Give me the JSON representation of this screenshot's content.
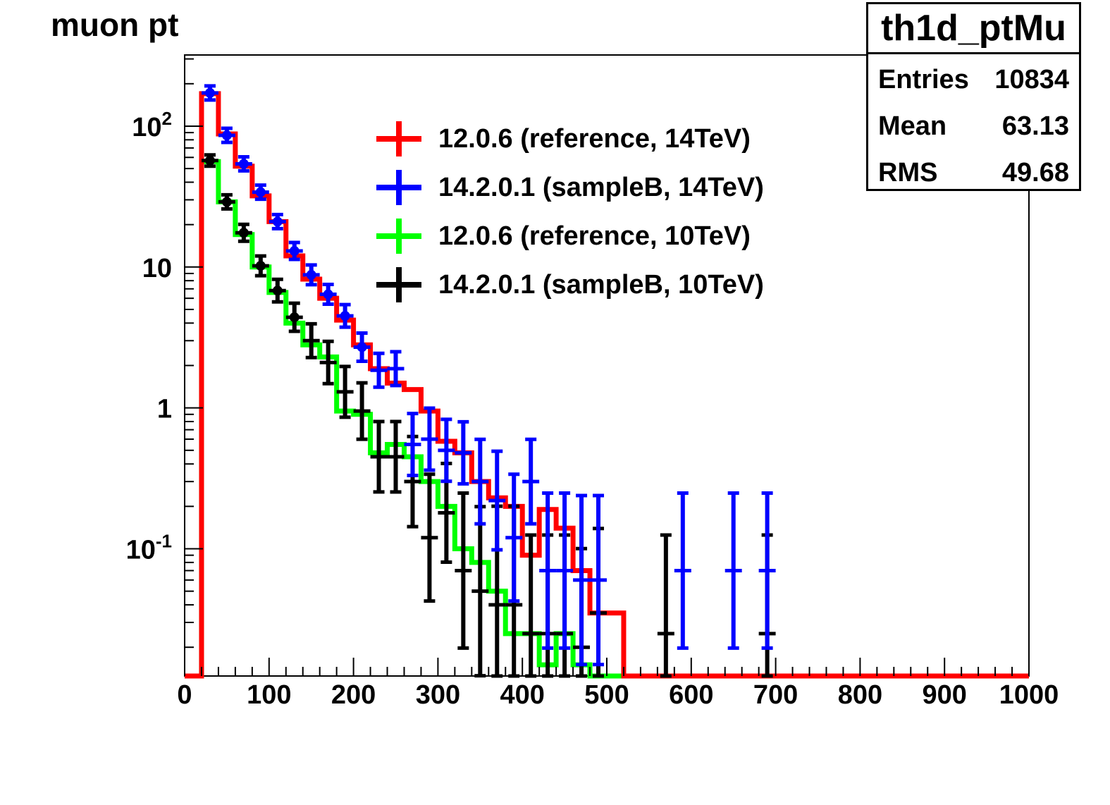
{
  "chart_data": {
    "type": "histogram",
    "title": "muon pt",
    "xlim": [
      0,
      1000
    ],
    "ylim": [
      0.0125,
      320
    ],
    "yscale": "log",
    "bin_width": 20,
    "x_ticks": [
      0,
      100,
      200,
      300,
      400,
      500,
      600,
      700,
      800,
      900,
      1000
    ],
    "x_tick_labels": [
      "0",
      "100",
      "200",
      "300",
      "400",
      "500",
      "600",
      "700",
      "800",
      "900",
      "1000"
    ],
    "y_ticks": [
      0.1,
      1,
      10,
      100
    ],
    "y_tick_labels": [
      {
        "base": "10",
        "exp": "-1"
      },
      {
        "base": "1",
        "exp": ""
      },
      {
        "base": "10",
        "exp": ""
      },
      {
        "base": "10",
        "exp": "2"
      }
    ],
    "legend_position": "upper-center",
    "series": [
      {
        "name": "12.0.6 (reference, 14TeV)",
        "color": "#ff0000",
        "style": "step",
        "x": [
          30,
          50,
          70,
          90,
          110,
          130,
          150,
          170,
          190,
          210,
          230,
          250,
          270,
          290,
          310,
          330,
          350,
          370,
          390,
          410,
          430,
          450,
          470,
          490,
          510
        ],
        "y": [
          170,
          88,
          52,
          32,
          21,
          12,
          8.2,
          6,
          4.2,
          2.8,
          1.9,
          1.5,
          1.35,
          0.95,
          0.58,
          0.48,
          0.3,
          0.23,
          0.2,
          0.09,
          0.19,
          0.14,
          0.07,
          0.035,
          0.035
        ]
      },
      {
        "name": "14.2.0.1 (sampleB, 14TeV)",
        "color": "#0000ff",
        "style": "errorbar",
        "x": [
          30,
          50,
          70,
          90,
          110,
          130,
          150,
          170,
          190,
          210,
          230,
          250,
          270,
          290,
          310,
          330,
          350,
          370,
          390,
          410,
          430,
          450,
          470,
          490,
          590,
          650,
          690
        ],
        "y": [
          172,
          86,
          54,
          34,
          21,
          13,
          8.8,
          6.4,
          4.5,
          2.7,
          1.85,
          1.9,
          0.55,
          0.6,
          0.5,
          0.48,
          0.3,
          0.22,
          0.12,
          0.3,
          0.07,
          0.07,
          0.06,
          0.06,
          0.07,
          0.07,
          0.07
        ],
        "err": [
          0.05,
          0.05,
          0.05,
          0.05,
          0.05,
          0.06,
          0.07,
          0.07,
          0.08,
          0.1,
          0.12,
          0.12,
          0.22,
          0.22,
          0.22,
          0.22,
          0.3,
          0.35,
          0.45,
          0.3,
          0.55,
          0.55,
          0.6,
          0.6,
          0.55,
          0.55,
          0.55
        ]
      },
      {
        "name": "12.0.6 (reference, 10TeV)",
        "color": "#00ff00",
        "style": "step",
        "x": [
          30,
          50,
          70,
          90,
          110,
          130,
          150,
          170,
          190,
          210,
          230,
          250,
          270,
          290,
          310,
          330,
          350,
          370,
          390,
          410,
          430,
          450,
          470,
          490,
          510
        ],
        "y": [
          56,
          29,
          17,
          10,
          6.6,
          4,
          2.8,
          2.3,
          0.95,
          0.9,
          0.48,
          0.55,
          0.45,
          0.3,
          0.2,
          0.1,
          0.08,
          0.05,
          0.025,
          0.025,
          0.015,
          0.025,
          0.015,
          0.012,
          0.012
        ]
      },
      {
        "name": "14.2.0.1 (sampleB, 10TeV)",
        "color": "#000000",
        "style": "errorbar",
        "x": [
          30,
          50,
          70,
          90,
          110,
          130,
          150,
          170,
          190,
          210,
          230,
          250,
          270,
          290,
          310,
          330,
          350,
          370,
          390,
          410,
          430,
          450,
          470,
          490,
          570,
          690
        ],
        "y": [
          57,
          29,
          17.5,
          10.2,
          6.8,
          4.4,
          3,
          2.1,
          1.3,
          0.95,
          0.45,
          0.45,
          0.3,
          0.12,
          0.18,
          0.07,
          0.05,
          0.04,
          0.04,
          0.025,
          0.025,
          0.025,
          0.02,
          0.035,
          0.025,
          0.025
        ],
        "err": [
          0.04,
          0.05,
          0.06,
          0.07,
          0.08,
          0.1,
          0.12,
          0.15,
          0.18,
          0.2,
          0.25,
          0.25,
          0.32,
          0.45,
          0.35,
          0.55,
          0.6,
          0.7,
          0.7,
          0.7,
          0.7,
          0.7,
          0.7,
          0.6,
          0.7,
          0.7
        ]
      }
    ]
  },
  "stats": {
    "name": "th1d_ptMu",
    "rows": [
      {
        "label": "Entries",
        "value": "10834"
      },
      {
        "label": "Mean",
        "value": "63.13"
      },
      {
        "label": "RMS",
        "value": "49.68"
      }
    ]
  }
}
